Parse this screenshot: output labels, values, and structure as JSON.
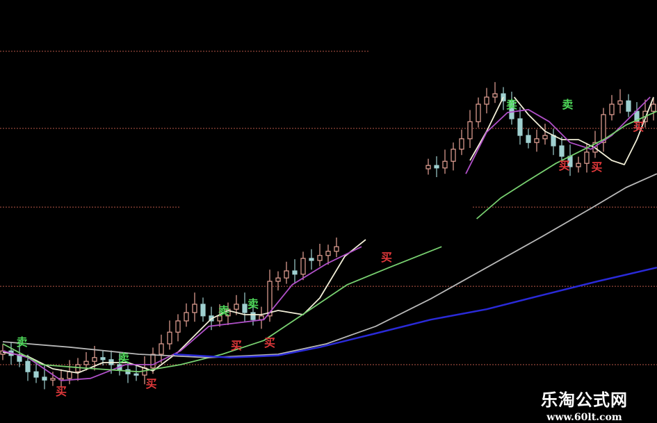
{
  "chart_data": {
    "type": "candlestick",
    "title": "",
    "xlabel": "",
    "ylabel": "",
    "grid": true,
    "ylim": [
      0,
      101.5
    ],
    "xlim": [
      0,
      78.5
    ],
    "gridlines": [
      89.2,
      70.7,
      51.8,
      32.8,
      14.0
    ],
    "colors": {
      "up": "#e8a598",
      "down": "#9fd0d0",
      "grid": "#7a3a30",
      "sell": "#4fd85a",
      "buy": "#e0383a"
    },
    "segments": [
      {
        "start_index": 0,
        "closes": [
          17.3,
          16.2,
          14.8,
          12.3,
          11.0,
          10.3,
          10.7,
          10.7,
          12.3,
          14.0,
          14.8,
          15.7,
          15.2,
          14.0,
          12.8,
          11.8,
          11.5,
          13.2,
          16.5,
          19.0,
          21.8,
          24.5,
          26.5,
          28.5,
          25.7,
          24.5,
          25.7,
          27.3,
          28.5,
          26.5,
          24.8,
          25.7,
          34.0,
          34.8,
          36.5,
          35.7,
          39.5,
          39.0,
          40.2,
          41.2,
          42.3
        ]
      },
      {
        "start_index": 51,
        "closes": [
          61.8,
          61.2,
          62.8,
          65.7,
          68.2,
          72.3,
          76.5,
          78.2,
          79.0,
          77.3,
          73.0,
          69.0,
          67.3,
          68.2,
          69.0,
          66.5,
          64.0,
          61.5,
          62.3,
          65.0,
          67.3,
          74.0,
          76.5,
          77.3,
          74.8,
          72.3,
          74.8,
          76.5
        ]
      }
    ],
    "series": [
      {
        "color": "#f2efd8",
        "segments": [
          [
            [
              0,
              17
            ],
            [
              3,
              16
            ],
            [
              6,
              13
            ],
            [
              9,
              12
            ],
            [
              12,
              14.5
            ],
            [
              15,
              14.5
            ],
            [
              18,
              12.5
            ],
            [
              21,
              17
            ],
            [
              23,
              21
            ],
            [
              25,
              25
            ],
            [
              27,
              27
            ],
            [
              29,
              26
            ],
            [
              31,
              26
            ],
            [
              33,
              27
            ],
            [
              36,
              26
            ],
            [
              38,
              30
            ],
            [
              41,
              40
            ],
            [
              43.5,
              44
            ]
          ],
          [
            [
              56,
              63
            ],
            [
              58,
              70
            ],
            [
              60,
              78.2
            ]
          ],
          [
            [
              61.3,
              78.2
            ],
            [
              63,
              74
            ],
            [
              65,
              70
            ],
            [
              67,
              68
            ],
            [
              69,
              68
            ],
            [
              71,
              66
            ],
            [
              73,
              63
            ],
            [
              74.5,
              62
            ],
            [
              76,
              68
            ],
            [
              78,
              78.2
            ]
          ]
        ]
      },
      {
        "color": "#b050c8",
        "segments": [
          [
            [
              0,
              17.3
            ],
            [
              3,
              15.7
            ],
            [
              7,
              10.2
            ],
            [
              10.5,
              10.7
            ],
            [
              14.7,
              14
            ],
            [
              18,
              14
            ],
            [
              21.3,
              17.3
            ],
            [
              24.7,
              23.2
            ],
            [
              28,
              24
            ],
            [
              31.3,
              24.8
            ],
            [
              34.7,
              33.2
            ],
            [
              38.8,
              38.2
            ],
            [
              43,
              42.3
            ]
          ],
          [
            [
              55.5,
              59.8
            ],
            [
              58,
              69.8
            ],
            [
              60.5,
              74.5
            ],
            [
              63,
              75.2
            ],
            [
              65.5,
              72.3
            ],
            [
              68,
              67.3
            ],
            [
              70.5,
              65.7
            ],
            [
              73,
              69
            ],
            [
              75.5,
              74
            ],
            [
              77.6,
              78.2
            ]
          ]
        ]
      },
      {
        "color": "#78d070",
        "segments": [
          [
            [
              0,
              19
            ],
            [
              4.7,
              14
            ],
            [
              9.7,
              13.2
            ],
            [
              16.3,
              12.3
            ],
            [
              21.3,
              14
            ],
            [
              26.3,
              16.5
            ],
            [
              31.3,
              19.8
            ],
            [
              36.3,
              26.5
            ],
            [
              41.3,
              33.2
            ],
            [
              46.3,
              37.3
            ],
            [
              52.6,
              42.3
            ]
          ],
          [
            [
              56.8,
              49
            ],
            [
              59.7,
              54
            ],
            [
              63,
              58.2
            ],
            [
              66.3,
              62.3
            ],
            [
              69.7,
              65.7
            ],
            [
              72.2,
              68.2
            ],
            [
              74.7,
              71.5
            ],
            [
              78.4,
              74.8
            ]
          ]
        ]
      },
      {
        "color": "#b8b8b8",
        "segments": [
          [
            [
              0,
              19.5
            ],
            [
              8,
              18.2
            ],
            [
              16.3,
              16.5
            ],
            [
              24.7,
              15.7
            ],
            [
              33,
              16.5
            ],
            [
              38.8,
              19
            ],
            [
              44.7,
              23.2
            ],
            [
              51.3,
              29.8
            ],
            [
              58,
              37.3
            ],
            [
              64.7,
              44.8
            ],
            [
              70.5,
              51.5
            ],
            [
              74.7,
              56.5
            ],
            [
              78.4,
              59.8
            ]
          ]
        ]
      },
      {
        "color": "#2a2ad8",
        "segments": [
          [
            [
              20.5,
              16.5
            ],
            [
              27.2,
              15.7
            ],
            [
              33,
              16.2
            ],
            [
              38,
              18.2
            ],
            [
              44.7,
              21.5
            ],
            [
              51.3,
              24.8
            ],
            [
              58,
              27.3
            ],
            [
              64.7,
              30.7
            ],
            [
              71.3,
              34
            ],
            [
              78.4,
              37.3
            ]
          ]
        ]
      }
    ],
    "signals": {
      "sell_label": "卖",
      "buy_label": "买",
      "sell": [
        [
          2.3,
          19.5
        ],
        [
          14.5,
          15.7
        ],
        [
          26.5,
          27
        ],
        [
          30,
          28.7
        ],
        [
          61,
          76.5
        ],
        [
          67.7,
          76.5
        ]
      ],
      "buy": [
        [
          7,
          7.7
        ],
        [
          17.8,
          9.5
        ],
        [
          28,
          18.7
        ],
        [
          32,
          19.3
        ],
        [
          46,
          39.8
        ],
        [
          67.3,
          61.8
        ],
        [
          71.2,
          61.5
        ],
        [
          76.2,
          71.2
        ]
      ]
    }
  },
  "watermark": {
    "name": "乐淘公式网",
    "url": "www.60lt.com"
  }
}
